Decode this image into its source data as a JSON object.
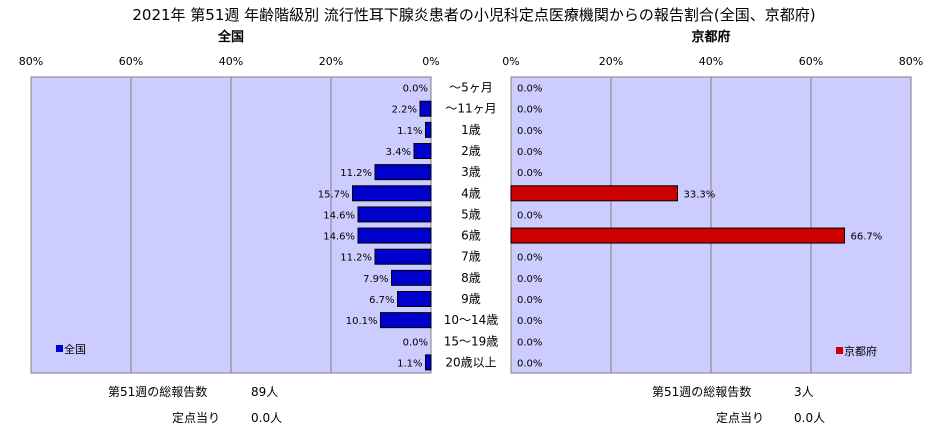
{
  "chart_data": {
    "type": "bar",
    "title": "2021年 第51週 年齢階級別 流行性耳下腺炎患者の小児科定点医療機関からの報告割合(全国、京都府)",
    "categories": [
      "～5ヶ月",
      "～11ヶ月",
      "1歳",
      "2歳",
      "3歳",
      "4歳",
      "5歳",
      "6歳",
      "7歳",
      "8歳",
      "9歳",
      "10～14歳",
      "15～19歳",
      "20歳以上"
    ],
    "xlim": [
      0,
      80
    ],
    "xticks": [
      "80%",
      "60%",
      "40%",
      "20%",
      "0%"
    ],
    "xticks_right": [
      "0%",
      "20%",
      "40%",
      "60%",
      "80%"
    ],
    "grid": true,
    "series": [
      {
        "name": "全国",
        "panel_title": "全国",
        "color": "#0000cc",
        "values": [
          0.0,
          2.2,
          1.1,
          3.4,
          11.2,
          15.7,
          14.6,
          14.6,
          11.2,
          7.9,
          6.7,
          10.1,
          0.0,
          1.1
        ],
        "labels": [
          "0.0%",
          "2.2%",
          "1.1%",
          "3.4%",
          "11.2%",
          "15.7%",
          "14.6%",
          "14.6%",
          "11.2%",
          "7.9%",
          "6.7%",
          "10.1%",
          "0.0%",
          "1.1%"
        ],
        "legend_position": "bottom-left"
      },
      {
        "name": "京都府",
        "panel_title": "京都府",
        "color": "#cc0000",
        "values": [
          0.0,
          0.0,
          0.0,
          0.0,
          0.0,
          33.3,
          0.0,
          66.7,
          0.0,
          0.0,
          0.0,
          0.0,
          0.0,
          0.0
        ],
        "labels": [
          "0.0%",
          "0.0%",
          "0.0%",
          "0.0%",
          "0.0%",
          "33.3%",
          "0.0%",
          "66.7%",
          "0.0%",
          "0.0%",
          "0.0%",
          "0.0%",
          "0.0%",
          "0.0%"
        ],
        "legend_position": "bottom-right"
      }
    ]
  },
  "footer": {
    "left": {
      "total_label": "第51週の総報告数",
      "total_value": "89人",
      "per_label": "定点当り",
      "per_value": "0.0人"
    },
    "right": {
      "total_label": "第51週の総報告数",
      "total_value": "3人",
      "per_label": "定点当り",
      "per_value": "0.0人"
    }
  },
  "colors": {
    "plot_bg": "#ccccff",
    "grid": "#808080"
  }
}
